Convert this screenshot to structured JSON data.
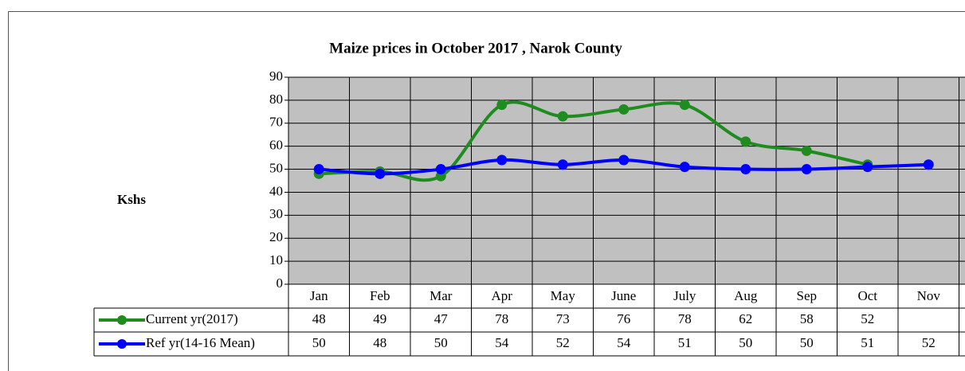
{
  "chart_data": {
    "type": "line",
    "title": "Maize  prices in October  2017 ,  Narok County",
    "y_label": "Kshs",
    "categories": [
      "Jan",
      "Feb",
      "Mar",
      "Apr",
      "May",
      "June",
      "July",
      "Aug",
      "Sep",
      "Oct",
      "Nov",
      null
    ],
    "series": [
      {
        "name": "Current yr(2017)",
        "color": "#1f8c1f",
        "values": [
          48,
          49,
          47,
          78,
          73,
          76,
          78,
          62,
          58,
          52,
          null,
          null
        ]
      },
      {
        "name": "Ref yr(14-16 Mean)",
        "color": "#0000ff",
        "values": [
          50,
          48,
          50,
          54,
          52,
          54,
          51,
          50,
          50,
          51,
          52,
          null
        ]
      }
    ],
    "ylim": [
      0,
      90
    ],
    "yticks": [
      0,
      10,
      20,
      30,
      40,
      50,
      60,
      70,
      80,
      90
    ],
    "grid": true,
    "smooth": true,
    "data_table": true
  }
}
